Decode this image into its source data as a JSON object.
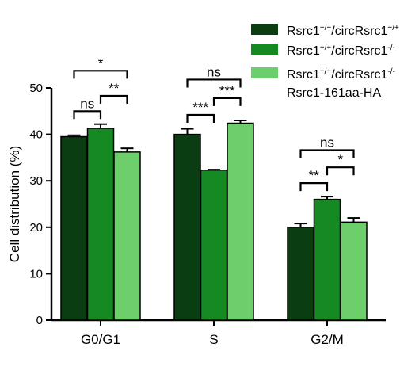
{
  "chart_data": {
    "type": "bar",
    "ylabel": "Cell distribution (%)",
    "xlabel": "",
    "ylim": [
      0,
      50
    ],
    "yticks": [
      0,
      10,
      20,
      30,
      40,
      50
    ],
    "categories": [
      "G0/G1",
      "S",
      "G2/M"
    ],
    "series": [
      {
        "legend": {
          "main": "Rsrc1",
          "sup1": "+/+",
          "mid": "/circRsrc1",
          "sup2": "+/+",
          "line2": ""
        },
        "color": "#0b3d12",
        "values": [
          39.5,
          40.0,
          20.0
        ],
        "errors": [
          0.3,
          1.2,
          0.8
        ]
      },
      {
        "legend": {
          "main": "Rsrc1",
          "sup1": "+/+",
          "mid": "/circRsrc1",
          "sup2": "-/-",
          "line2": ""
        },
        "color": "#158a22",
        "values": [
          41.3,
          32.3,
          26.0
        ],
        "errors": [
          0.9,
          0.1,
          0.6
        ]
      },
      {
        "legend": {
          "main": "Rsrc1",
          "sup1": "+/+",
          "mid": "/circRsrc1",
          "sup2": "-/-",
          "line2": "Rsrc1-161aa-HA"
        },
        "color": "#6ccf6c",
        "values": [
          36.2,
          42.4,
          21.1
        ],
        "errors": [
          0.8,
          0.6,
          0.9
        ]
      }
    ],
    "significance": [
      {
        "category": 0,
        "from": 0,
        "to": 1,
        "label": "ns",
        "level": 45
      },
      {
        "category": 0,
        "from": 1,
        "to": 2,
        "label": "**",
        "level": 48.3
      },
      {
        "category": 0,
        "from": 0,
        "to": 2,
        "label": "*",
        "level": 53.7
      },
      {
        "category": 1,
        "from": 0,
        "to": 1,
        "label": "***",
        "level": 44.2
      },
      {
        "category": 1,
        "from": 1,
        "to": 2,
        "label": "***",
        "level": 47.8
      },
      {
        "category": 1,
        "from": 0,
        "to": 2,
        "label": "ns",
        "level": 51.8
      },
      {
        "category": 2,
        "from": 0,
        "to": 1,
        "label": "**",
        "level": 29.5
      },
      {
        "category": 2,
        "from": 1,
        "to": 2,
        "label": "*",
        "level": 32.9
      },
      {
        "category": 2,
        "from": 0,
        "to": 2,
        "label": "ns",
        "level": 36.6
      }
    ],
    "legend_position": "top-right"
  }
}
